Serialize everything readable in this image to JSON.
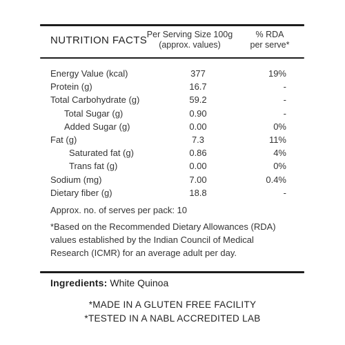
{
  "header": {
    "title": "NUTRITION FACTS",
    "serving_line1": "Per Serving Size 100g",
    "serving_line2": "(approx. values)",
    "rda_line1": "% RDA",
    "rda_line2": "per serve*"
  },
  "nutrients": [
    {
      "name": "Energy Value (kcal)",
      "value": "377",
      "rda": "19%"
    },
    {
      "name": "Protein (g)",
      "value": "16.7",
      "rda": "-"
    },
    {
      "name": "Total Carbohydrate (g)",
      "value": "59.2",
      "rda": "-"
    },
    {
      "name": "Total Sugar (g)",
      "value": "0.90",
      "rda": "-"
    },
    {
      "name": "Added Sugar (g)",
      "value": "0.00",
      "rda": "0%"
    },
    {
      "name": "Fat (g)",
      "value": "7.3",
      "rda": "11%"
    },
    {
      "name": "Saturated fat (g)",
      "value": "0.86",
      "rda": "4%"
    },
    {
      "name": "Trans fat (g)",
      "value": "0.00",
      "rda": "0%"
    },
    {
      "name": "Sodium (mg)",
      "value": "7.00",
      "rda": "0.4%"
    },
    {
      "name": "Dietary fiber (g)",
      "value": "18.8",
      "rda": "-"
    }
  ],
  "serves_per_pack": "Approx. no. of serves per pack: 10",
  "footnote": [
    "*Based on the Recommended Dietary Allowances (RDA)",
    "values established by the Indian Council of Medical",
    "Research (ICMR) for an average adult per day."
  ],
  "ingredients": {
    "label": "Ingredients:",
    "value": "White Quinoa"
  },
  "claims": [
    "*MADE IN A GLUTEN FREE FACILITY",
    "*TESTED IN A NABL ACCREDITED LAB"
  ]
}
